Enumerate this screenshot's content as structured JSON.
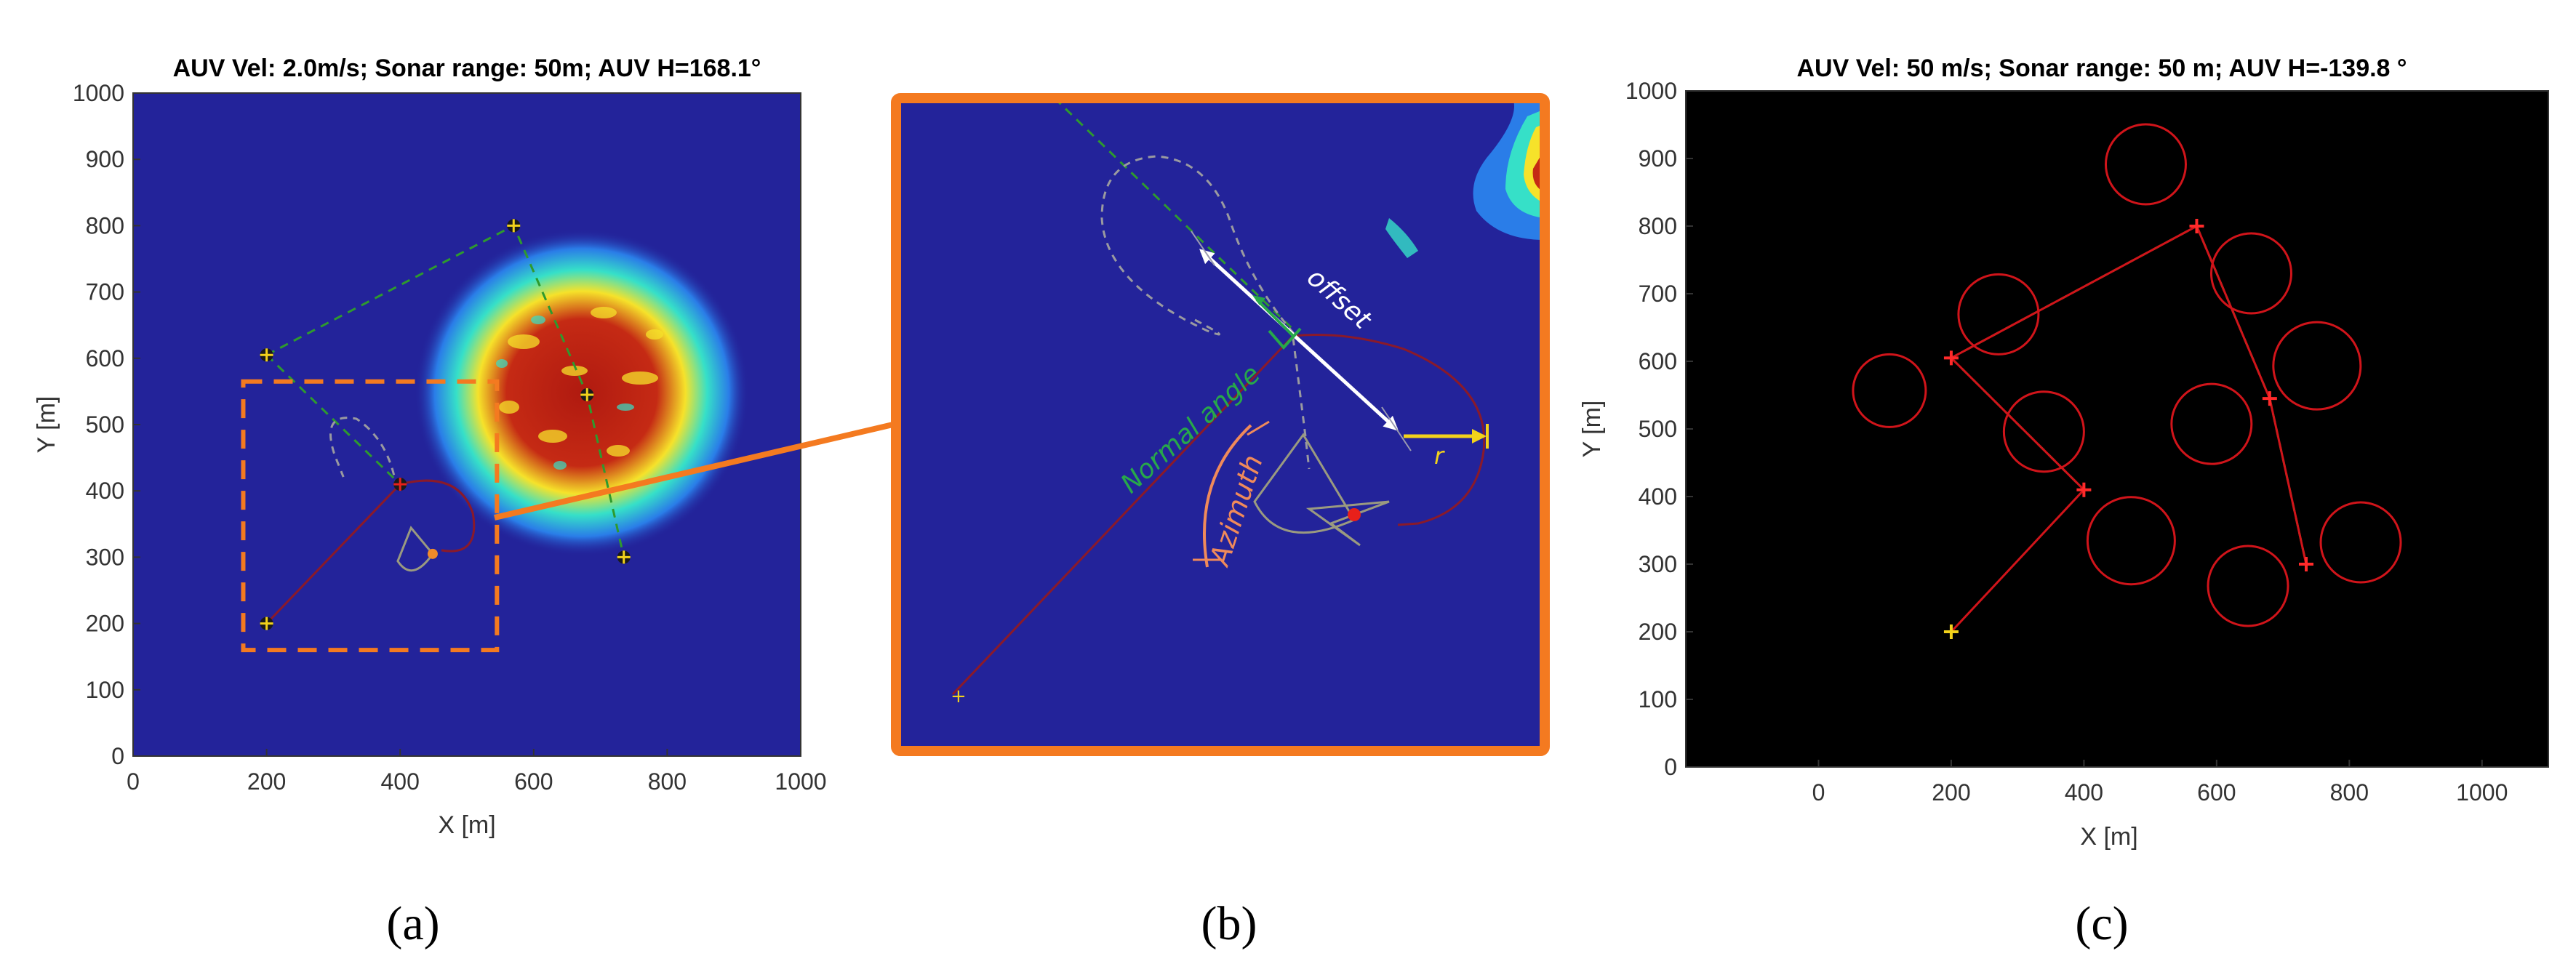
{
  "chart_data": [
    {
      "panel": "(a)",
      "type": "scatter",
      "title": "AUV Vel: 2.0m/s; Sonar range: 50m; AUV H=168.1°",
      "xlabel": "X [m]",
      "ylabel": "Y [m]",
      "xlim": [
        0,
        1000
      ],
      "ylim": [
        0,
        1000
      ],
      "xticks": [
        "0",
        "200",
        "400",
        "600",
        "800",
        "1000"
      ],
      "yticks": [
        "0",
        "100",
        "200",
        "300",
        "400",
        "500",
        "600",
        "700",
        "800",
        "900",
        "1000"
      ],
      "background": "#23239a",
      "grid": false,
      "waypoints": [
        {
          "x": 200,
          "y": 200
        },
        {
          "x": 400,
          "y": 410
        },
        {
          "x": 200,
          "y": 605
        },
        {
          "x": 570,
          "y": 800
        },
        {
          "x": 680,
          "y": 545
        },
        {
          "x": 735,
          "y": 300
        }
      ],
      "auv_position": {
        "x": 440,
        "y": 305
      },
      "plume_center": {
        "x": 650,
        "y": 640
      },
      "zoom_box": {
        "x0": 165,
        "y0": 160,
        "x1": 545,
        "y1": 565
      }
    },
    {
      "panel": "(b)",
      "type": "scatter",
      "title": "",
      "background": "#23239a",
      "border_color": "#f47a20",
      "annotations": [
        "offset",
        "Normal angle",
        "Azimuth",
        "r"
      ],
      "annotation_colors": {
        "offset": "#ffffff",
        "Normal angle": "#27a84a",
        "Azimuth": "#f08a5a",
        "r": "#f2d21b"
      }
    },
    {
      "panel": "(c)",
      "type": "line",
      "title": "AUV Vel: 50 m/s;  Sonar range: 50 m;  AUV H=-139.8 °",
      "xlabel": "X [m]",
      "ylabel": "Y [m]",
      "xlim": [
        -200,
        1100
      ],
      "ylim": [
        0,
        1000
      ],
      "xticks": [
        "0",
        "200",
        "400",
        "600",
        "800",
        "1000"
      ],
      "yticks": [
        "0",
        "100",
        "200",
        "300",
        "400",
        "500",
        "600",
        "700",
        "800",
        "900",
        "1000"
      ],
      "background": "#000000",
      "grid": false,
      "start": {
        "x": 200,
        "y": 200
      },
      "waypoints": [
        {
          "x": 200,
          "y": 200
        },
        {
          "x": 400,
          "y": 410
        },
        {
          "x": 200,
          "y": 605
        },
        {
          "x": 570,
          "y": 800
        },
        {
          "x": 680,
          "y": 545
        },
        {
          "x": 735,
          "y": 300
        }
      ],
      "path_color": "#d0141a",
      "planned_color": "#2e9a2e"
    }
  ],
  "panel_labels": [
    "(a)",
    "(b)",
    "(c)"
  ]
}
